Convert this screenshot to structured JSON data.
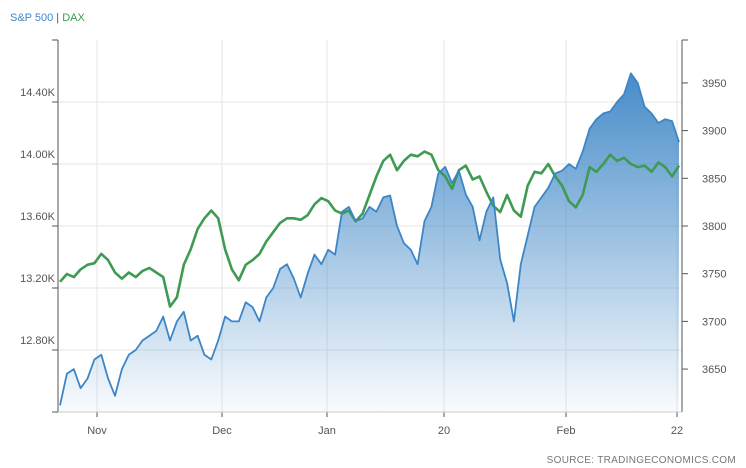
{
  "legend": {
    "sp500": "S&P 500",
    "separator": "|",
    "dax": "DAX"
  },
  "source": "SOURCE: TRADINGECONOMICS.COM",
  "colors": {
    "sp500": "#3d86c6",
    "dax": "#3f9a53",
    "grid": "#e6e6e6",
    "axis": "#555555",
    "text": "#555555"
  },
  "chart_data": {
    "type": "line",
    "title": "",
    "legend_position": "top-left",
    "grid": true,
    "x_ticks": [
      "Nov",
      "Dec",
      "Jan",
      "20",
      "Feb",
      "22"
    ],
    "left_axis": {
      "series": "DAX",
      "ylim": [
        12400,
        14800
      ],
      "ticks": [
        "12.80K",
        "13.20K",
        "13.60K",
        "14.00K",
        "14.40K"
      ],
      "tick_values": [
        12800,
        13200,
        13600,
        14000,
        14400
      ]
    },
    "right_axis": {
      "series": "S&P 500",
      "ylim": [
        3605,
        3995
      ],
      "ticks": [
        "3650",
        "3700",
        "3750",
        "3800",
        "3850",
        "3900",
        "3950"
      ],
      "tick_values": [
        3650,
        3700,
        3750,
        3800,
        3850,
        3900,
        3950
      ]
    },
    "series": [
      {
        "name": "DAX",
        "axis": "left",
        "color": "#3f9a53",
        "values": [
          13240,
          13290,
          13270,
          13320,
          13350,
          13360,
          13420,
          13380,
          13300,
          13260,
          13300,
          13270,
          13310,
          13330,
          13300,
          13270,
          13080,
          13140,
          13350,
          13450,
          13580,
          13650,
          13700,
          13650,
          13450,
          13320,
          13250,
          13350,
          13380,
          13420,
          13500,
          13560,
          13620,
          13650,
          13650,
          13640,
          13670,
          13740,
          13780,
          13760,
          13700,
          13680,
          13700,
          13630,
          13680,
          13800,
          13920,
          14020,
          14060,
          13960,
          14020,
          14060,
          14050,
          14080,
          14060,
          13960,
          13920,
          13840,
          13960,
          13990,
          13900,
          13920,
          13820,
          13730,
          13690,
          13800,
          13700,
          13660,
          13860,
          13950,
          13940,
          14000,
          13920,
          13860,
          13760,
          13720,
          13800,
          13980,
          13950,
          14000,
          14060,
          14020,
          14040,
          14000,
          13980,
          13990,
          13950,
          14010,
          13980,
          13920,
          13990
        ]
      },
      {
        "name": "S&P 500",
        "axis": "right",
        "color": "#3d86c6",
        "values": [
          3612,
          3645,
          3650,
          3630,
          3640,
          3660,
          3665,
          3640,
          3622,
          3650,
          3665,
          3670,
          3680,
          3685,
          3690,
          3705,
          3680,
          3700,
          3710,
          3680,
          3685,
          3665,
          3660,
          3680,
          3705,
          3700,
          3700,
          3720,
          3715,
          3700,
          3725,
          3735,
          3755,
          3760,
          3745,
          3725,
          3750,
          3770,
          3760,
          3775,
          3770,
          3815,
          3820,
          3805,
          3808,
          3820,
          3815,
          3830,
          3832,
          3800,
          3782,
          3775,
          3760,
          3805,
          3820,
          3855,
          3862,
          3845,
          3858,
          3833,
          3820,
          3785,
          3815,
          3830,
          3765,
          3740,
          3700,
          3760,
          3790,
          3820,
          3830,
          3840,
          3855,
          3858,
          3865,
          3860,
          3878,
          3902,
          3912,
          3918,
          3920,
          3930,
          3938,
          3960,
          3950,
          3925,
          3918,
          3908,
          3912,
          3910,
          3888
        ]
      }
    ]
  }
}
